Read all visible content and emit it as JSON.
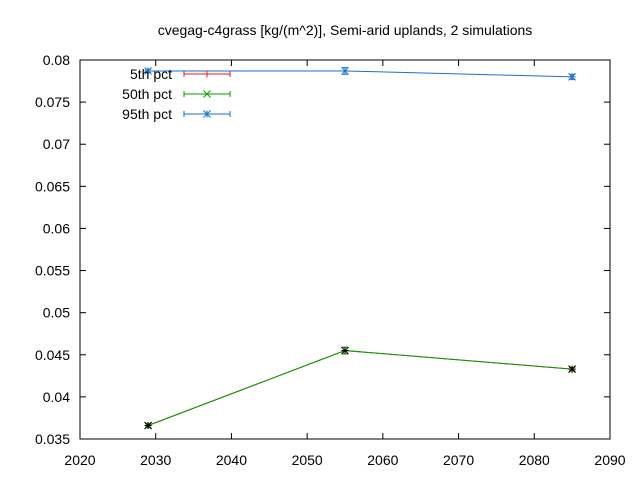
{
  "chart_data": {
    "type": "line",
    "title": "cvegag-c4grass [kg/(m^2)], Semi-arid uplands, 2 simulations",
    "xlabel": "",
    "ylabel": "",
    "xlim": [
      2020,
      2090
    ],
    "ylim": [
      0.035,
      0.08
    ],
    "x_ticks": [
      2020,
      2030,
      2040,
      2050,
      2060,
      2070,
      2080,
      2090
    ],
    "y_ticks": [
      0.035,
      0.04,
      0.045,
      0.05,
      0.055,
      0.06,
      0.065,
      0.07,
      0.075,
      0.08
    ],
    "y_tick_labels": [
      "0.035",
      "0.04",
      "0.045",
      "0.05",
      "0.055",
      "0.06",
      "0.065",
      "0.07",
      "0.075",
      "0.08"
    ],
    "legend_position": "top-left",
    "grid": false,
    "series": [
      {
        "name": "5th pct",
        "color": "#e41a1c",
        "marker": "plus",
        "x": [
          2029,
          2055,
          2085
        ],
        "y": [
          0.0366,
          0.0455,
          0.0433
        ],
        "err": [
          0.0002,
          0.0004,
          0.0002
        ]
      },
      {
        "name": "50th pct",
        "color": "#00a000",
        "marker": "cross",
        "x": [
          2029,
          2055,
          2085
        ],
        "y": [
          0.0366,
          0.0455,
          0.0433
        ],
        "err": [
          0.0002,
          0.0004,
          0.0002
        ]
      },
      {
        "name": "95th pct",
        "color": "#1a72c8",
        "marker": "star",
        "x": [
          2029,
          2055,
          2085
        ],
        "y": [
          0.0787,
          0.0787,
          0.078
        ],
        "err": [
          0.0002,
          0.0004,
          0.0003
        ]
      },
      {
        "name": "",
        "color": "#000000",
        "marker": "star",
        "x": [
          2029,
          2055,
          2085
        ],
        "y": [
          0.0366,
          0.0455,
          0.0433
        ],
        "err": [
          0,
          0,
          0
        ]
      }
    ]
  }
}
